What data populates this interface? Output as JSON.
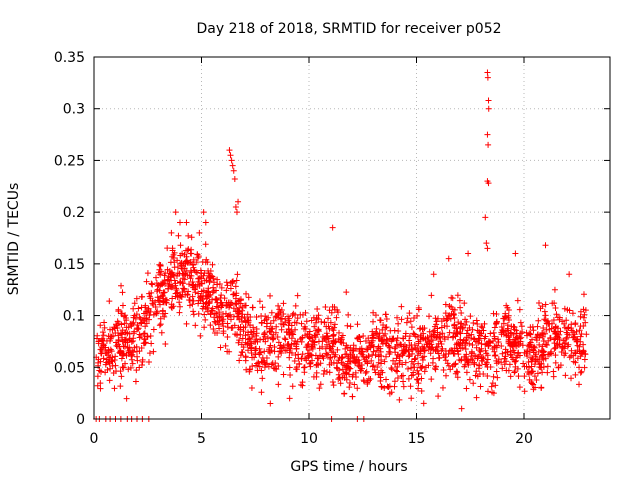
{
  "chart_data": {
    "type": "scatter",
    "title": "Day 218 of 2018, SRMTID for receiver p052",
    "xlabel": "GPS time / hours",
    "ylabel": "SRMTID / TECUs",
    "xlim": [
      0,
      24
    ],
    "ylim": [
      0,
      0.35
    ],
    "x_ticks": [
      0,
      5,
      10,
      15,
      20
    ],
    "x_tick_labels": [
      "0",
      "5",
      "10",
      "15",
      "20"
    ],
    "y_ticks": [
      0,
      0.05,
      0.1,
      0.15,
      0.2,
      0.25,
      0.3,
      0.35
    ],
    "y_tick_labels": [
      "0",
      "0.05",
      "0.1",
      "0.15",
      "0.2",
      "0.25",
      "0.3",
      "0.35"
    ],
    "grid": true,
    "marker": "+",
    "color": "#ff0000",
    "trend": [
      [
        0.0,
        0.06
      ],
      [
        0.5,
        0.065
      ],
      [
        1.0,
        0.075
      ],
      [
        1.5,
        0.075
      ],
      [
        2.0,
        0.08
      ],
      [
        2.5,
        0.095
      ],
      [
        3.0,
        0.115
      ],
      [
        3.5,
        0.13
      ],
      [
        4.0,
        0.14
      ],
      [
        4.5,
        0.14
      ],
      [
        5.0,
        0.13
      ],
      [
        5.5,
        0.12
      ],
      [
        6.0,
        0.1
      ],
      [
        6.5,
        0.115
      ],
      [
        7.0,
        0.085
      ],
      [
        7.5,
        0.075
      ],
      [
        8.0,
        0.075
      ],
      [
        8.5,
        0.08
      ],
      [
        9.0,
        0.075
      ],
      [
        9.5,
        0.07
      ],
      [
        10.0,
        0.07
      ],
      [
        10.5,
        0.07
      ],
      [
        11.0,
        0.07
      ],
      [
        11.5,
        0.065
      ],
      [
        12.0,
        0.06
      ],
      [
        12.5,
        0.06
      ],
      [
        13.0,
        0.065
      ],
      [
        13.5,
        0.065
      ],
      [
        14.0,
        0.06
      ],
      [
        14.5,
        0.065
      ],
      [
        15.0,
        0.07
      ],
      [
        15.5,
        0.065
      ],
      [
        16.0,
        0.075
      ],
      [
        16.5,
        0.08
      ],
      [
        17.0,
        0.075
      ],
      [
        17.5,
        0.065
      ],
      [
        18.0,
        0.065
      ],
      [
        18.5,
        0.06
      ],
      [
        19.0,
        0.075
      ],
      [
        19.5,
        0.08
      ],
      [
        20.0,
        0.065
      ],
      [
        20.5,
        0.065
      ],
      [
        21.0,
        0.075
      ],
      [
        21.5,
        0.085
      ],
      [
        22.0,
        0.075
      ],
      [
        22.5,
        0.07
      ],
      [
        22.9,
        0.07
      ]
    ],
    "spread": 0.03,
    "n_points": 2100,
    "outliers": [
      [
        6.3,
        0.26
      ],
      [
        6.35,
        0.255
      ],
      [
        6.4,
        0.25
      ],
      [
        6.45,
        0.245
      ],
      [
        6.5,
        0.24
      ],
      [
        6.55,
        0.232
      ],
      [
        6.6,
        0.205
      ],
      [
        6.65,
        0.2
      ],
      [
        6.7,
        0.21
      ],
      [
        3.8,
        0.2
      ],
      [
        4.0,
        0.19
      ],
      [
        4.3,
        0.19
      ],
      [
        5.1,
        0.2
      ],
      [
        5.2,
        0.19
      ],
      [
        4.9,
        0.18
      ],
      [
        3.6,
        0.18
      ],
      [
        11.1,
        0.185
      ],
      [
        18.2,
        0.195
      ],
      [
        18.3,
        0.335
      ],
      [
        18.32,
        0.33
      ],
      [
        18.35,
        0.308
      ],
      [
        18.36,
        0.3
      ],
      [
        18.3,
        0.275
      ],
      [
        18.33,
        0.265
      ],
      [
        18.3,
        0.23
      ],
      [
        18.35,
        0.228
      ],
      [
        18.25,
        0.17
      ],
      [
        18.3,
        0.165
      ],
      [
        17.1,
        0.01
      ],
      [
        8.2,
        0.015
      ],
      [
        9.1,
        0.02
      ],
      [
        13.5,
        0.03
      ],
      [
        18.6,
        0.025
      ],
      [
        20.8,
        0.03
      ],
      [
        21.0,
        0.168
      ],
      [
        22.1,
        0.14
      ],
      [
        19.6,
        0.16
      ],
      [
        16.5,
        0.155
      ],
      [
        15.8,
        0.14
      ],
      [
        17.4,
        0.16
      ]
    ],
    "zero_points": [
      0.1,
      0.25,
      0.55,
      0.75,
      1.0,
      1.25,
      1.55,
      1.75,
      2.0,
      2.25,
      2.55,
      11.05,
      12.25,
      12.55
    ]
  }
}
